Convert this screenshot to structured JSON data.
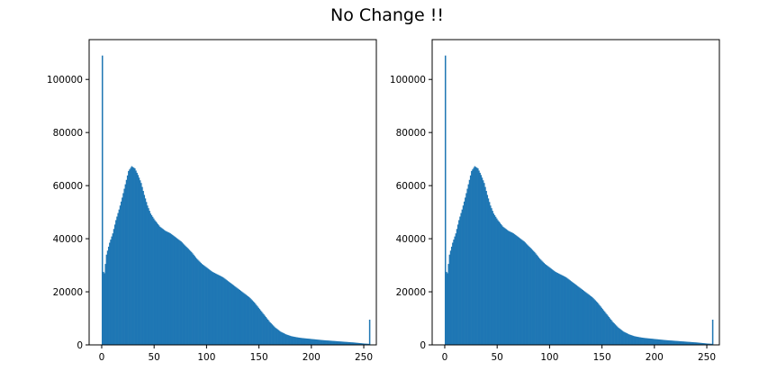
{
  "figure": {
    "title": "No Change !!"
  },
  "colors": {
    "bar": "#1f77b4",
    "axes": "#000000",
    "background": "#ffffff"
  },
  "chart_data": [
    {
      "type": "bar",
      "kind": "histogram",
      "bins": 256,
      "xlim": [
        -12,
        262
      ],
      "ylim": [
        0,
        115000
      ],
      "xticks": [
        0,
        50,
        100,
        150,
        200,
        250
      ],
      "xtick_labels": [
        "0",
        "50",
        "100",
        "150",
        "200",
        "250"
      ],
      "yticks": [
        0,
        20000,
        40000,
        60000,
        80000,
        100000
      ],
      "ytick_labels": [
        "0",
        "20000",
        "40000",
        "60000",
        "80000",
        "100000"
      ],
      "grid": false,
      "title": "",
      "xlabel": "",
      "ylabel": "",
      "anchors": [
        [
          0,
          109000
        ],
        [
          1,
          27500
        ],
        [
          2,
          27000
        ],
        [
          4,
          34000
        ],
        [
          7,
          38500
        ],
        [
          10,
          42000
        ],
        [
          13,
          47000
        ],
        [
          16,
          51000
        ],
        [
          19,
          55500
        ],
        [
          22,
          60500
        ],
        [
          25,
          65500
        ],
        [
          28,
          67300
        ],
        [
          31,
          66500
        ],
        [
          34,
          64000
        ],
        [
          37,
          61000
        ],
        [
          40,
          56500
        ],
        [
          43,
          52500
        ],
        [
          46,
          49500
        ],
        [
          50,
          47000
        ],
        [
          55,
          44500
        ],
        [
          60,
          43000
        ],
        [
          65,
          42000
        ],
        [
          70,
          40500
        ],
        [
          75,
          39000
        ],
        [
          80,
          37000
        ],
        [
          85,
          35000
        ],
        [
          90,
          32500
        ],
        [
          95,
          30500
        ],
        [
          100,
          29000
        ],
        [
          105,
          27500
        ],
        [
          110,
          26500
        ],
        [
          115,
          25500
        ],
        [
          120,
          24000
        ],
        [
          125,
          22500
        ],
        [
          130,
          21000
        ],
        [
          135,
          19500
        ],
        [
          140,
          18000
        ],
        [
          145,
          16000
        ],
        [
          150,
          13500
        ],
        [
          155,
          11000
        ],
        [
          160,
          8500
        ],
        [
          165,
          6500
        ],
        [
          170,
          5000
        ],
        [
          175,
          4000
        ],
        [
          180,
          3300
        ],
        [
          185,
          2900
        ],
        [
          190,
          2600
        ],
        [
          200,
          2200
        ],
        [
          210,
          1800
        ],
        [
          220,
          1500
        ],
        [
          230,
          1200
        ],
        [
          240,
          900
        ],
        [
          250,
          500
        ],
        [
          254,
          400
        ],
        [
          255,
          9500
        ]
      ]
    },
    {
      "type": "bar",
      "kind": "histogram",
      "bins": 256,
      "xlim": [
        -12,
        262
      ],
      "ylim": [
        0,
        115000
      ],
      "xticks": [
        0,
        50,
        100,
        150,
        200,
        250
      ],
      "xtick_labels": [
        "0",
        "50",
        "100",
        "150",
        "200",
        "250"
      ],
      "yticks": [
        0,
        20000,
        40000,
        60000,
        80000,
        100000
      ],
      "ytick_labels": [
        "0",
        "20000",
        "40000",
        "60000",
        "80000",
        "100000"
      ],
      "grid": false,
      "title": "",
      "xlabel": "",
      "ylabel": "",
      "anchors": [
        [
          0,
          109000
        ],
        [
          1,
          27500
        ],
        [
          2,
          27000
        ],
        [
          4,
          34000
        ],
        [
          7,
          38500
        ],
        [
          10,
          42000
        ],
        [
          13,
          47000
        ],
        [
          16,
          51000
        ],
        [
          19,
          55500
        ],
        [
          22,
          60500
        ],
        [
          25,
          65500
        ],
        [
          28,
          67300
        ],
        [
          31,
          66500
        ],
        [
          34,
          64000
        ],
        [
          37,
          61000
        ],
        [
          40,
          56500
        ],
        [
          43,
          52500
        ],
        [
          46,
          49500
        ],
        [
          50,
          47000
        ],
        [
          55,
          44500
        ],
        [
          60,
          43000
        ],
        [
          65,
          42000
        ],
        [
          70,
          40500
        ],
        [
          75,
          39000
        ],
        [
          80,
          37000
        ],
        [
          85,
          35000
        ],
        [
          90,
          32500
        ],
        [
          95,
          30500
        ],
        [
          100,
          29000
        ],
        [
          105,
          27500
        ],
        [
          110,
          26500
        ],
        [
          115,
          25500
        ],
        [
          120,
          24000
        ],
        [
          125,
          22500
        ],
        [
          130,
          21000
        ],
        [
          135,
          19500
        ],
        [
          140,
          18000
        ],
        [
          145,
          16000
        ],
        [
          150,
          13500
        ],
        [
          155,
          11000
        ],
        [
          160,
          8500
        ],
        [
          165,
          6500
        ],
        [
          170,
          5000
        ],
        [
          175,
          4000
        ],
        [
          180,
          3300
        ],
        [
          185,
          2900
        ],
        [
          190,
          2600
        ],
        [
          200,
          2200
        ],
        [
          210,
          1800
        ],
        [
          220,
          1500
        ],
        [
          230,
          1200
        ],
        [
          240,
          900
        ],
        [
          250,
          500
        ],
        [
          254,
          400
        ],
        [
          255,
          9500
        ]
      ]
    }
  ]
}
